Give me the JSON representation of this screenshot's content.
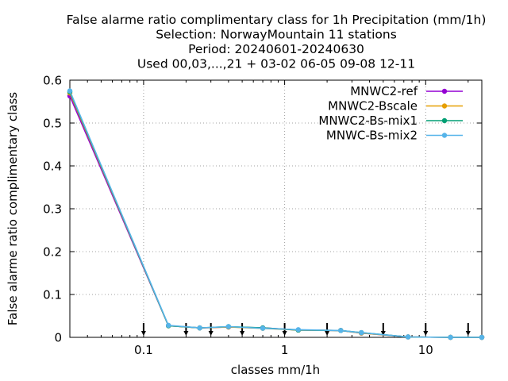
{
  "chart_data": {
    "type": "line",
    "title_lines": [
      "False alarme ratio complimentary class  for 1h Precipitation (mm/1h)",
      "Selection: NorwayMountain     11 stations",
      "Period: 20240601-20240630",
      "Used 00,03,...,21 + 03-02 06-05 09-08 12-11"
    ],
    "xlabel": "classes mm/1h",
    "ylabel": "False alarme ratio complimentary class",
    "x_scale": "log",
    "xlim": [
      0.03,
      25
    ],
    "ylim": [
      0,
      0.6
    ],
    "x_ticks": [
      0.1,
      1,
      10
    ],
    "x_tick_labels": [
      "0.1",
      "1",
      "10"
    ],
    "y_ticks": [
      0,
      0.1,
      0.2,
      0.3,
      0.4,
      0.5,
      0.6
    ],
    "y_tick_labels": [
      "0",
      "0.1",
      "0.2",
      "0.3",
      "0.4",
      "0.5",
      "0.6"
    ],
    "grid": true,
    "legend_position": "top-right",
    "x": [
      0.03,
      0.15,
      0.25,
      0.4,
      0.7,
      1.25,
      2.5,
      3.5,
      7.5,
      15,
      25
    ],
    "series": [
      {
        "name": "MNWC2-ref",
        "color": "#9400d3",
        "values": [
          0.563,
          0.027,
          0.022,
          0.024,
          0.022,
          0.017,
          0.016,
          0.01,
          0.001,
          0.0,
          0.0
        ]
      },
      {
        "name": "MNWC2-Bscale",
        "color": "#e69f00",
        "values": [
          0.57,
          0.027,
          0.022,
          0.024,
          0.021,
          0.017,
          0.016,
          0.01,
          0.001,
          0.0,
          0.0
        ]
      },
      {
        "name": "MNWC2-Bs-mix1",
        "color": "#009e73",
        "values": [
          0.573,
          0.027,
          0.022,
          0.025,
          0.022,
          0.017,
          0.016,
          0.011,
          0.001,
          0.0,
          0.0
        ]
      },
      {
        "name": "MNWC-Bs-mix2",
        "color": "#56b4e9",
        "values": [
          0.575,
          0.028,
          0.022,
          0.025,
          0.021,
          0.018,
          0.016,
          0.011,
          0.001,
          0.0,
          0.0
        ]
      }
    ],
    "threshold_markers": {
      "color": "#000000",
      "x": [
        0.1,
        0.2,
        0.3,
        0.5,
        1,
        2,
        5,
        10,
        20
      ]
    }
  }
}
